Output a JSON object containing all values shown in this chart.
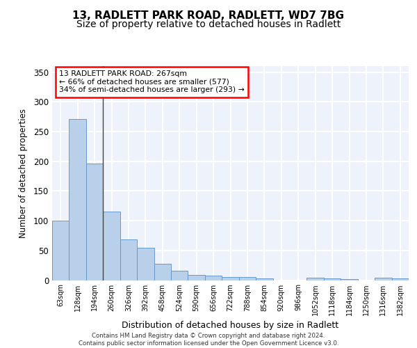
{
  "title_line1": "13, RADLETT PARK ROAD, RADLETT, WD7 7BG",
  "title_line2": "Size of property relative to detached houses in Radlett",
  "xlabel": "Distribution of detached houses by size in Radlett",
  "ylabel": "Number of detached properties",
  "bar_labels": [
    "63sqm",
    "128sqm",
    "194sqm",
    "260sqm",
    "326sqm",
    "392sqm",
    "458sqm",
    "524sqm",
    "590sqm",
    "656sqm",
    "722sqm",
    "788sqm",
    "854sqm",
    "920sqm",
    "986sqm",
    "1052sqm",
    "1118sqm",
    "1184sqm",
    "1250sqm",
    "1316sqm",
    "1382sqm"
  ],
  "bar_color": "#b8d0ea",
  "bar_edge_color": "#6699cc",
  "annotation_text_line1": "13 RADLETT PARK ROAD: 267sqm",
  "annotation_text_line2": "← 66% of detached houses are smaller (577)",
  "annotation_text_line3": "34% of semi-detached houses are larger (293) →",
  "ylim": [
    0,
    360
  ],
  "yticks": [
    0,
    50,
    100,
    150,
    200,
    250,
    300,
    350
  ],
  "bg_color": "#eef2fb",
  "grid_color": "#ffffff",
  "footer_text": "Contains HM Land Registry data © Crown copyright and database right 2024.\nContains public sector information licensed under the Open Government Licence v3.0.",
  "title_fontsize": 11,
  "subtitle_fontsize": 10,
  "n_bars": 21,
  "all_bar_values": [
    100,
    271,
    196,
    115,
    68,
    54,
    27,
    16,
    9,
    8,
    5,
    5,
    3,
    0,
    0,
    4,
    3,
    2,
    0,
    4,
    3
  ],
  "vline_x": 3
}
